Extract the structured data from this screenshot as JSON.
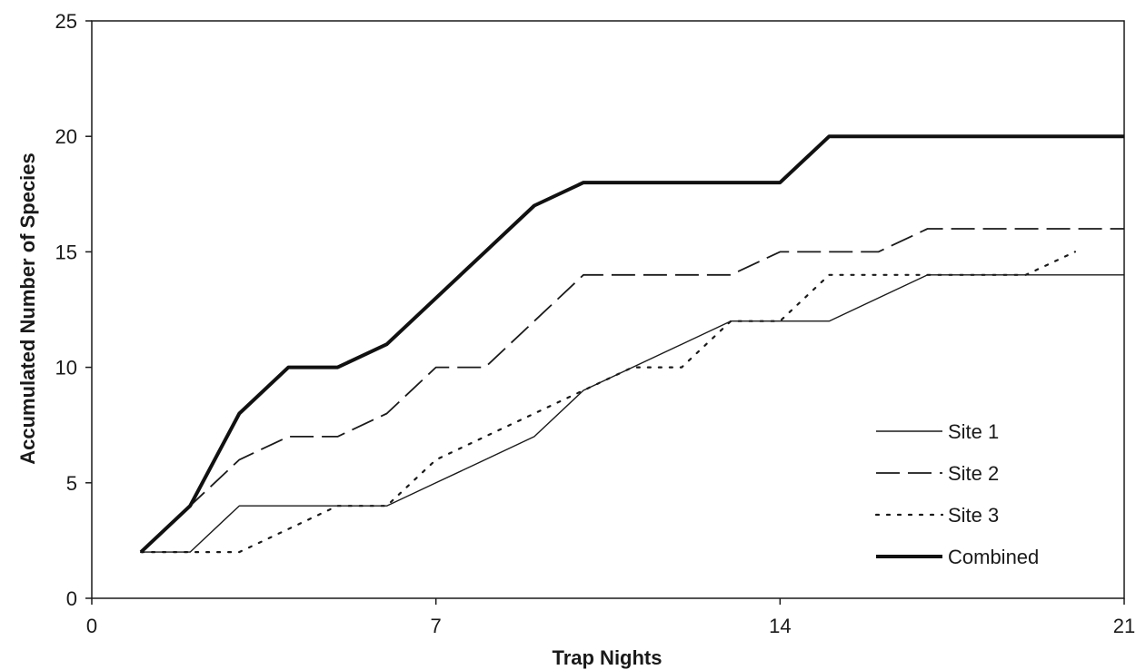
{
  "chart_data": {
    "type": "line",
    "title": "",
    "xlabel": "Trap Nights",
    "ylabel": "Accumulated Number of Species",
    "xlim": [
      0,
      21
    ],
    "ylim": [
      0,
      25
    ],
    "xticks": [
      0,
      7,
      14,
      21
    ],
    "yticks": [
      0,
      5,
      10,
      15,
      20,
      25
    ],
    "grid": false,
    "legend_position": "lower-right",
    "series": [
      {
        "name": "Site 1",
        "style": "solid-thin",
        "color": "#1a1a1a",
        "x": [
          1,
          2,
          3,
          4,
          5,
          6,
          7,
          8,
          9,
          10,
          11,
          12,
          13,
          14,
          15,
          16,
          17,
          18,
          19,
          20,
          21
        ],
        "y": [
          2,
          2,
          4,
          4,
          4,
          4,
          5,
          6,
          7,
          9,
          10,
          11,
          12,
          12,
          12,
          13,
          14,
          14,
          14,
          14,
          14
        ]
      },
      {
        "name": "Site 2",
        "style": "long-dash",
        "color": "#1a1a1a",
        "x": [
          1,
          2,
          3,
          4,
          5,
          6,
          7,
          8,
          9,
          10,
          11,
          12,
          13,
          14,
          15,
          16,
          17,
          18,
          19,
          20,
          21
        ],
        "y": [
          2,
          4,
          6,
          7,
          7,
          8,
          10,
          10,
          12,
          14,
          14,
          14,
          14,
          15,
          15,
          15,
          16,
          16,
          16,
          16,
          16
        ]
      },
      {
        "name": "Site 3",
        "style": "dotted",
        "color": "#1a1a1a",
        "x": [
          1,
          2,
          3,
          4,
          5,
          6,
          7,
          8,
          9,
          10,
          11,
          12,
          13,
          14,
          15,
          16,
          17,
          18,
          19,
          20
        ],
        "y": [
          2,
          2,
          2,
          3,
          4,
          4,
          6,
          7,
          8,
          9,
          10,
          10,
          12,
          12,
          14,
          14,
          14,
          14,
          14,
          15
        ]
      },
      {
        "name": "Combined",
        "style": "solid-thick",
        "color": "#111111",
        "x": [
          1,
          2,
          3,
          4,
          5,
          6,
          7,
          8,
          9,
          10,
          11,
          12,
          13,
          14,
          15,
          16,
          17,
          18,
          19,
          20,
          21
        ],
        "y": [
          2,
          4,
          8,
          10,
          10,
          11,
          13,
          15,
          17,
          18,
          18,
          18,
          18,
          18,
          20,
          20,
          20,
          20,
          20,
          20,
          20
        ]
      }
    ]
  }
}
